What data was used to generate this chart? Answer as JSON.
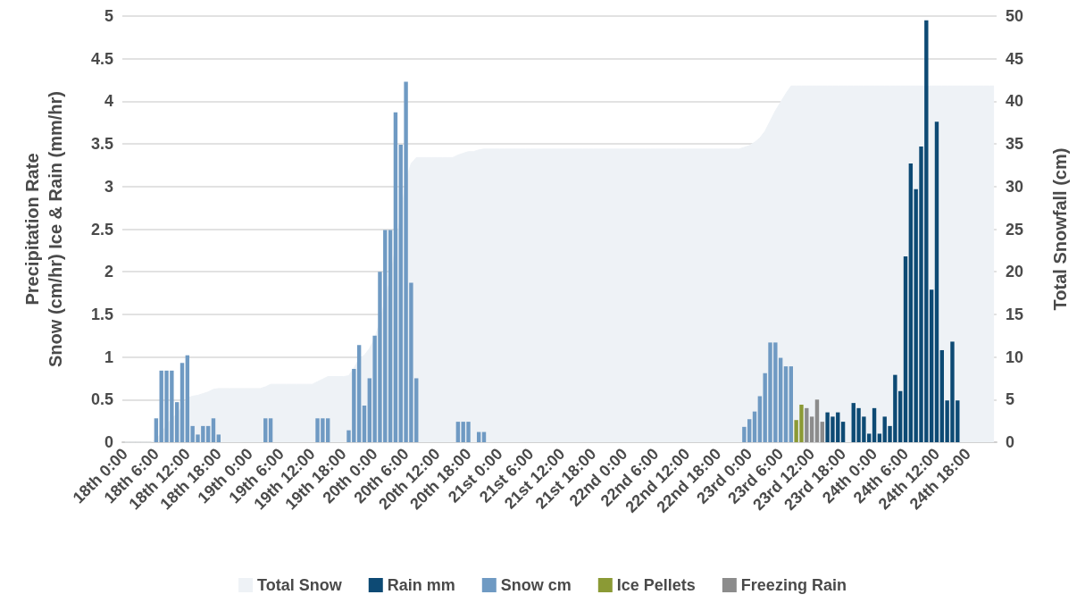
{
  "chart_data": {
    "type": "bar",
    "ylabel": "Precipitation Rate\nSnow (cm/hr) Ice & Rain (mm/hr)",
    "y2label": "Total Snowfall (cm)",
    "categories": [
      "18th 0:00",
      null,
      null,
      null,
      null,
      null,
      "18th 6:00",
      null,
      null,
      null,
      null,
      null,
      "18th 12:00",
      null,
      null,
      null,
      null,
      null,
      "18th 18:00",
      null,
      null,
      null,
      null,
      null,
      "19th 0:00",
      null,
      null,
      null,
      null,
      null,
      "19th 6:00",
      null,
      null,
      null,
      null,
      null,
      "19th 12:00",
      null,
      null,
      null,
      null,
      null,
      "19th 18:00",
      null,
      null,
      null,
      null,
      null,
      "20th 0:00",
      null,
      null,
      null,
      null,
      null,
      "20th 6:00",
      null,
      null,
      null,
      null,
      null,
      "20th 12:00",
      null,
      null,
      null,
      null,
      null,
      "20th 18:00",
      null,
      null,
      null,
      null,
      null,
      "21st 0:00",
      null,
      null,
      null,
      null,
      null,
      "21st 6:00",
      null,
      null,
      null,
      null,
      null,
      "21st 12:00",
      null,
      null,
      null,
      null,
      null,
      "21st 18:00",
      null,
      null,
      null,
      null,
      null,
      "22nd 0:00",
      null,
      null,
      null,
      null,
      null,
      "22nd 6:00",
      null,
      null,
      null,
      null,
      null,
      "22nd 12:00",
      null,
      null,
      null,
      null,
      null,
      "22nd 18:00",
      null,
      null,
      null,
      null,
      null,
      "23rd 0:00",
      null,
      null,
      null,
      null,
      null,
      "23rd 6:00",
      null,
      null,
      null,
      null,
      null,
      "23rd 12:00",
      null,
      null,
      null,
      null,
      null,
      "23rd 18:00",
      null,
      null,
      null,
      null,
      null,
      "24th 0:00",
      null,
      null,
      null,
      null,
      null,
      "24th 6:00",
      null,
      null,
      null,
      null,
      null,
      "24th 12:00",
      null,
      null,
      null,
      null,
      null,
      "24th 18:00",
      null,
      null,
      null,
      null,
      null
    ],
    "series": [
      {
        "name": "Total Snow",
        "type": "area",
        "axis": "y2",
        "color": "#eef2f6",
        "values": [
          0,
          0,
          0,
          0,
          0,
          0,
          0.3,
          1.1,
          2.0,
          2.8,
          3.3,
          4.2,
          5.2,
          5.4,
          5.5,
          5.7,
          5.9,
          6.2,
          6.3,
          6.3,
          6.3,
          6.3,
          6.3,
          6.3,
          6.3,
          6.3,
          6.3,
          6.5,
          6.8,
          6.8,
          6.8,
          6.8,
          6.8,
          6.8,
          6.8,
          6.8,
          6.8,
          7.1,
          7.4,
          7.7,
          7.7,
          7.7,
          7.7,
          7.8,
          8.7,
          9.8,
          10.2,
          11.0,
          12.2,
          14.2,
          16.7,
          19.2,
          23.1,
          26.6,
          30.8,
          32.7,
          33.4,
          33.4,
          33.4,
          33.4,
          33.4,
          33.4,
          33.4,
          33.4,
          33.7,
          33.9,
          34.1,
          34.1,
          34.3,
          34.4,
          34.4,
          34.4,
          34.4,
          34.4,
          34.4,
          34.4,
          34.4,
          34.4,
          34.4,
          34.4,
          34.4,
          34.4,
          34.4,
          34.4,
          34.4,
          34.4,
          34.4,
          34.4,
          34.4,
          34.4,
          34.4,
          34.4,
          34.4,
          34.4,
          34.4,
          34.4,
          34.4,
          34.4,
          34.4,
          34.4,
          34.4,
          34.4,
          34.4,
          34.4,
          34.4,
          34.4,
          34.4,
          34.4,
          34.4,
          34.4,
          34.4,
          34.4,
          34.4,
          34.4,
          34.4,
          34.4,
          34.4,
          34.4,
          34.4,
          34.6,
          34.8,
          35.2,
          35.7,
          36.5,
          37.7,
          38.9,
          39.9,
          40.9,
          41.8,
          41.8,
          41.8,
          41.8,
          41.8,
          41.8,
          41.8,
          41.8,
          41.8,
          41.8,
          41.8,
          41.8,
          41.8,
          41.8,
          41.8,
          41.8,
          41.8,
          41.8,
          41.8,
          41.8,
          41.8,
          41.8,
          41.8,
          41.8,
          41.8,
          41.8,
          41.8,
          41.8,
          41.8,
          41.8,
          41.8,
          41.8,
          41.8,
          41.8,
          41.8,
          41.8,
          41.8,
          41.8,
          41.8,
          41.8
        ]
      },
      {
        "name": "Rain mm",
        "color": "#0d4a74",
        "values": [
          null,
          null,
          null,
          null,
          null,
          null,
          null,
          null,
          null,
          null,
          null,
          null,
          null,
          null,
          null,
          null,
          null,
          null,
          null,
          null,
          null,
          null,
          null,
          null,
          null,
          null,
          null,
          null,
          null,
          null,
          null,
          null,
          null,
          null,
          null,
          null,
          null,
          null,
          null,
          null,
          null,
          null,
          null,
          null,
          null,
          null,
          null,
          null,
          null,
          null,
          null,
          null,
          null,
          null,
          null,
          null,
          null,
          null,
          null,
          null,
          null,
          null,
          null,
          null,
          null,
          null,
          null,
          null,
          null,
          null,
          null,
          null,
          null,
          null,
          null,
          null,
          null,
          null,
          null,
          null,
          null,
          null,
          null,
          null,
          null,
          null,
          null,
          null,
          null,
          null,
          null,
          null,
          null,
          null,
          null,
          null,
          null,
          null,
          null,
          null,
          null,
          null,
          null,
          null,
          null,
          null,
          null,
          null,
          null,
          null,
          null,
          null,
          null,
          null,
          null,
          null,
          null,
          null,
          null,
          null,
          null,
          null,
          null,
          null,
          null,
          null,
          null,
          null,
          null,
          null,
          null,
          null,
          null,
          null,
          null,
          0.35,
          0.3,
          0.35,
          0.24,
          null,
          0.46,
          0.4,
          0.3,
          0.1,
          0.4,
          0.1,
          0.3,
          0.19,
          0.79,
          0.6,
          2.18,
          3.27,
          2.97,
          3.47,
          4.95,
          1.79,
          3.76,
          1.08,
          0.49,
          1.18,
          0.49,
          null,
          null,
          null,
          null,
          null,
          null,
          null
        ]
      },
      {
        "name": "Snow cm",
        "color": "#6f9ac3",
        "values": [
          null,
          null,
          null,
          null,
          null,
          null,
          0.28,
          0.84,
          0.84,
          0.84,
          0.47,
          0.93,
          1.02,
          0.19,
          0.09,
          0.19,
          0.19,
          0.28,
          0.09,
          null,
          null,
          null,
          null,
          null,
          null,
          null,
          null,
          0.28,
          0.28,
          null,
          null,
          null,
          null,
          null,
          null,
          null,
          null,
          0.28,
          0.28,
          0.28,
          null,
          null,
          null,
          0.14,
          0.86,
          1.14,
          0.43,
          0.75,
          1.25,
          2.0,
          2.49,
          2.49,
          3.87,
          3.49,
          4.23,
          1.87,
          0.75,
          null,
          null,
          null,
          null,
          null,
          null,
          null,
          0.24,
          0.24,
          0.24,
          null,
          0.12,
          0.12,
          null,
          null,
          null,
          null,
          null,
          null,
          null,
          null,
          null,
          null,
          null,
          null,
          null,
          null,
          null,
          null,
          null,
          null,
          null,
          null,
          null,
          null,
          null,
          null,
          null,
          null,
          null,
          null,
          null,
          null,
          null,
          null,
          null,
          null,
          null,
          null,
          null,
          null,
          null,
          null,
          null,
          null,
          null,
          null,
          null,
          null,
          null,
          null,
          null,
          0.18,
          0.27,
          0.36,
          0.54,
          0.81,
          1.17,
          1.17,
          0.99,
          0.89,
          0.89,
          null,
          null,
          null,
          null,
          null,
          null,
          null,
          null,
          null,
          null,
          null,
          null,
          null,
          null,
          null,
          null,
          null,
          null,
          null,
          null,
          null,
          null,
          null,
          null,
          null,
          null,
          null,
          null,
          null,
          null,
          null,
          null,
          null,
          null,
          null,
          null,
          null,
          null,
          null
        ]
      },
      {
        "name": "Ice Pellets",
        "color": "#8b9a35",
        "values": [
          null,
          null,
          null,
          null,
          null,
          null,
          null,
          null,
          null,
          null,
          null,
          null,
          null,
          null,
          null,
          null,
          null,
          null,
          null,
          null,
          null,
          null,
          null,
          null,
          null,
          null,
          null,
          null,
          null,
          null,
          null,
          null,
          null,
          null,
          null,
          null,
          null,
          null,
          null,
          null,
          null,
          null,
          null,
          null,
          null,
          null,
          null,
          null,
          null,
          null,
          null,
          null,
          null,
          null,
          null,
          null,
          null,
          null,
          null,
          null,
          null,
          null,
          null,
          null,
          null,
          null,
          null,
          null,
          null,
          null,
          null,
          null,
          null,
          null,
          null,
          null,
          null,
          null,
          null,
          null,
          null,
          null,
          null,
          null,
          null,
          null,
          null,
          null,
          null,
          null,
          null,
          null,
          null,
          null,
          null,
          null,
          null,
          null,
          null,
          null,
          null,
          null,
          null,
          null,
          null,
          null,
          null,
          null,
          null,
          null,
          null,
          null,
          null,
          null,
          null,
          null,
          null,
          null,
          null,
          null,
          null,
          null,
          null,
          null,
          null,
          null,
          null,
          null,
          null,
          0.26,
          0.44,
          null,
          null,
          null,
          null,
          null,
          null,
          null,
          null,
          null,
          null,
          null,
          null,
          null,
          null,
          null,
          null,
          null,
          null,
          null,
          null,
          null,
          null,
          null,
          null,
          null,
          null,
          null,
          null,
          null,
          null,
          null,
          null,
          null,
          null,
          null,
          null,
          null
        ]
      },
      {
        "name": "Freezing Rain",
        "color": "#8c8c8c",
        "values": [
          null,
          null,
          null,
          null,
          null,
          null,
          null,
          null,
          null,
          null,
          null,
          null,
          null,
          null,
          null,
          null,
          null,
          null,
          null,
          null,
          null,
          null,
          null,
          null,
          null,
          null,
          null,
          null,
          null,
          null,
          null,
          null,
          null,
          null,
          null,
          null,
          null,
          null,
          null,
          null,
          null,
          null,
          null,
          null,
          null,
          null,
          null,
          null,
          null,
          null,
          null,
          null,
          null,
          null,
          null,
          null,
          null,
          null,
          null,
          null,
          null,
          null,
          null,
          null,
          null,
          null,
          null,
          null,
          null,
          null,
          null,
          null,
          null,
          null,
          null,
          null,
          null,
          null,
          null,
          null,
          null,
          null,
          null,
          null,
          null,
          null,
          null,
          null,
          null,
          null,
          null,
          null,
          null,
          null,
          null,
          null,
          null,
          null,
          null,
          null,
          null,
          null,
          null,
          null,
          null,
          null,
          null,
          null,
          null,
          null,
          null,
          null,
          null,
          null,
          null,
          null,
          null,
          null,
          null,
          null,
          null,
          null,
          null,
          null,
          null,
          null,
          null,
          null,
          null,
          null,
          null,
          0.4,
          0.3,
          0.5,
          0.24,
          null,
          null,
          null,
          null,
          null,
          null,
          null,
          null,
          null,
          null,
          null,
          null,
          null,
          null,
          null,
          null,
          null,
          null,
          null,
          null,
          null,
          null,
          null,
          null,
          null,
          null,
          null,
          null,
          null,
          null,
          null,
          null,
          null
        ]
      }
    ],
    "ylim": [
      0,
      5
    ],
    "yticks": [
      0,
      0.5,
      1,
      1.5,
      2,
      2.5,
      3,
      3.5,
      4,
      4.5,
      5
    ],
    "y2lim": [
      0,
      50
    ],
    "y2ticks": [
      0,
      5,
      10,
      15,
      20,
      25,
      30,
      35,
      40,
      45,
      50
    ],
    "grid": "y",
    "legend": "bottom"
  }
}
